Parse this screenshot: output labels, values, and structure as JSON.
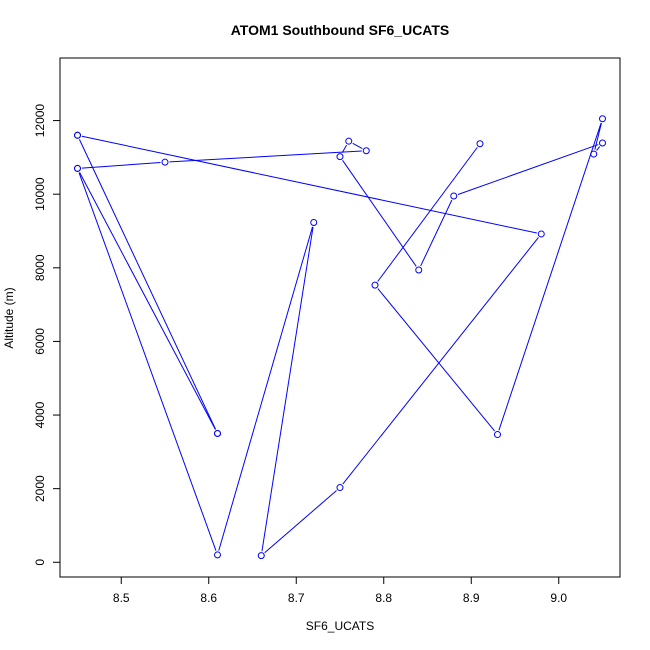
{
  "chart_data": {
    "type": "line",
    "title": "ATOM1 Southbound SF6_UCATS",
    "xlabel": "SF6_UCATS",
    "ylabel": "Altitude (m)",
    "xlim": [
      8.43,
      9.07
    ],
    "ylim": [
      -400,
      13700
    ],
    "x_ticks": [
      "8.5",
      "8.6",
      "8.7",
      "8.8",
      "8.9",
      "9.0"
    ],
    "y_ticks": [
      "0",
      "2000",
      "4000",
      "6000",
      "8000",
      "10000",
      "12000"
    ],
    "marker": "open-circle",
    "color": "#0000ff",
    "grid": false,
    "series": [
      {
        "x": [
          8.45,
          8.98,
          8.75,
          8.66,
          8.72,
          8.61,
          8.45,
          8.55,
          8.78,
          8.76,
          8.75,
          8.84,
          8.88,
          9.05,
          9.04,
          9.05,
          8.93,
          8.79,
          8.91
        ],
        "y": [
          11600,
          8920,
          2030,
          180,
          9230,
          200,
          10700,
          10870,
          11180,
          11440,
          11020,
          7940,
          9950,
          11390,
          11090,
          12050,
          3470,
          7530,
          11370
        ]
      },
      {
        "x": [
          8.45,
          8.61
        ],
        "y": [
          11600,
          3500
        ]
      },
      {
        "x": [
          8.45,
          8.61
        ],
        "y": [
          10700,
          3500
        ]
      }
    ]
  }
}
